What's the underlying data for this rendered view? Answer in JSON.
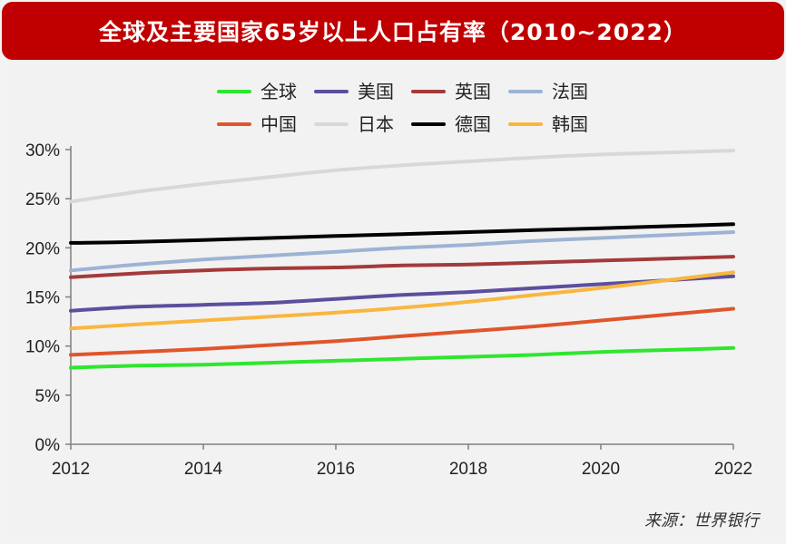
{
  "title": "全球及主要国家65岁以上人口占有率（2010~2022）",
  "source": "来源：世界银行",
  "chart_data": {
    "type": "line",
    "title": "全球及主要国家65岁以上人口占有率（2010~2022）",
    "xlabel": "",
    "ylabel": "",
    "x": [
      2012,
      2013,
      2014,
      2015,
      2016,
      2017,
      2018,
      2019,
      2020,
      2021,
      2022
    ],
    "x_ticks": [
      "2012",
      "2014",
      "2016",
      "2018",
      "2020",
      "2022"
    ],
    "xlim": [
      2012,
      2022
    ],
    "y_ticks": [
      "0%",
      "5%",
      "10%",
      "15%",
      "20%",
      "25%",
      "30%"
    ],
    "ylim": [
      0,
      30
    ],
    "legend_position": "top",
    "grid": false,
    "series": [
      {
        "name": "全球",
        "color": "#2ee62e",
        "values": [
          7.8,
          8.0,
          8.1,
          8.3,
          8.5,
          8.7,
          8.9,
          9.1,
          9.4,
          9.6,
          9.8
        ]
      },
      {
        "name": "美国",
        "color": "#5b4f9e",
        "values": [
          13.6,
          14.0,
          14.2,
          14.4,
          14.8,
          15.2,
          15.5,
          15.9,
          16.3,
          16.7,
          17.1
        ]
      },
      {
        "name": "英国",
        "color": "#a33a3a",
        "values": [
          17.0,
          17.4,
          17.7,
          17.9,
          18.0,
          18.2,
          18.3,
          18.5,
          18.7,
          18.9,
          19.1
        ]
      },
      {
        "name": "法国",
        "color": "#9db3d4",
        "values": [
          17.7,
          18.3,
          18.8,
          19.2,
          19.6,
          20.0,
          20.3,
          20.7,
          21.0,
          21.3,
          21.6
        ]
      },
      {
        "name": "中国",
        "color": "#e0552b",
        "values": [
          9.1,
          9.4,
          9.7,
          10.1,
          10.5,
          11.0,
          11.5,
          12.0,
          12.6,
          13.2,
          13.8
        ]
      },
      {
        "name": "日本",
        "color": "#d8d8d8",
        "values": [
          24.7,
          25.7,
          26.5,
          27.2,
          27.9,
          28.4,
          28.8,
          29.2,
          29.5,
          29.7,
          29.9
        ]
      },
      {
        "name": "德国",
        "color": "#000000",
        "values": [
          20.5,
          20.6,
          20.8,
          21.0,
          21.2,
          21.4,
          21.6,
          21.8,
          22.0,
          22.2,
          22.4
        ]
      },
      {
        "name": "韩国",
        "color": "#f9b63f",
        "values": [
          11.8,
          12.2,
          12.6,
          13.0,
          13.4,
          13.9,
          14.5,
          15.2,
          15.9,
          16.7,
          17.5
        ]
      }
    ]
  }
}
